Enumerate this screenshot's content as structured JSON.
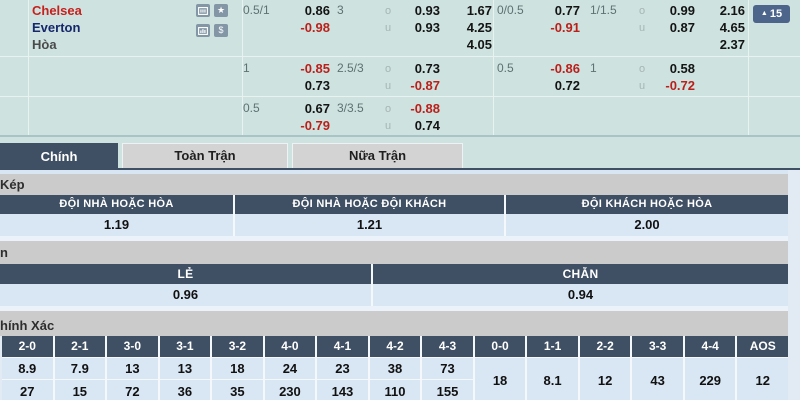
{
  "colors": {
    "panel_teal": "#cee3e0",
    "header_slate": "#3f4f64",
    "row_blue": "#d9e6f4",
    "row_blue_light": "#ecf2f9",
    "section_gray": "#cbcbcb",
    "page_bg": "#e2eaf4",
    "negative_red": "#bb1f1a",
    "team_home_red": "#c6211d",
    "team_away_navy": "#16286b",
    "muted_text": "#5e7173",
    "ou_letter": "#a7b4b4",
    "icon_bg": "#8296a6",
    "button_bg": "#4d648b"
  },
  "odds_panel": {
    "teams": {
      "home": "Chelsea",
      "away": "Everton",
      "draw": "Hòa"
    },
    "icons": [
      {
        "name": "live-score-icon"
      },
      {
        "name": "favorite-star-icon",
        "glyph": "★"
      },
      {
        "name": "statistics-icon"
      },
      {
        "name": "cash-odds-icon",
        "glyph": "$"
      }
    ],
    "more_bets": {
      "arrow": "▲",
      "count": "15"
    },
    "ou_labels": {
      "over": "o",
      "under": "u"
    },
    "rows": [
      {
        "g1": {
          "hcp": "0.5/1",
          "hdp_home": "0.86",
          "hdp_away": "-0.98",
          "line": "3",
          "over": "0.93",
          "under": "0.93",
          "x12": [
            "1.67",
            "4.25",
            "4.05"
          ]
        },
        "g2": {
          "hcp": "0/0.5",
          "hdp_home": "0.77",
          "hdp_away": "-0.91",
          "line": "1/1.5",
          "over": "0.99",
          "under": "0.87",
          "x12": [
            "2.16",
            "4.65",
            "2.37"
          ]
        }
      },
      {
        "g1": {
          "hcp": "1",
          "hdp_home": "-0.85",
          "hdp_away": "0.73",
          "line": "2.5/3",
          "over": "0.73",
          "under": "-0.87"
        },
        "g2": {
          "hcp": "0.5",
          "hdp_home": "-0.86",
          "hdp_away": "0.72",
          "line": "1",
          "over": "0.58",
          "under": "-0.72"
        }
      },
      {
        "g1": {
          "hcp": "0.5",
          "hdp_home": "0.67",
          "hdp_away": "-0.79",
          "line": "3/3.5",
          "over": "-0.88",
          "under": "0.74"
        }
      }
    ]
  },
  "tabs": {
    "active_index": 0,
    "items": [
      {
        "label": "Chính"
      },
      {
        "label": "Toàn Trận"
      },
      {
        "label": "Nữa Trận"
      }
    ]
  },
  "double_chance": {
    "heading": "Kép",
    "columns": [
      "ĐỘI NHÀ HOẶC HÒA",
      "ĐỘI NHÀ HOẶC ĐỘI KHÁCH",
      "ĐỘI KHÁCH HOẶC HÒA"
    ],
    "values": [
      "1.19",
      "1.21",
      "2.00"
    ]
  },
  "odd_even": {
    "heading": "n",
    "columns": [
      "LẺ",
      "CHẴN"
    ],
    "values": [
      "0.96",
      "0.94"
    ]
  },
  "correct_score": {
    "heading": "hính Xác",
    "columns": [
      "2-0",
      "2-1",
      "3-0",
      "3-1",
      "3-2",
      "4-0",
      "4-1",
      "4-2",
      "4-3",
      "0-0",
      "1-1",
      "2-2",
      "3-3",
      "4-4",
      "AOS"
    ],
    "row1": [
      "8.9",
      "7.9",
      "13",
      "13",
      "18",
      "24",
      "23",
      "38",
      "73"
    ],
    "row2": [
      "27",
      "15",
      "72",
      "36",
      "35",
      "230",
      "143",
      "110",
      "155"
    ],
    "merged": [
      "18",
      "8.1",
      "12",
      "43",
      "229",
      "12"
    ]
  }
}
